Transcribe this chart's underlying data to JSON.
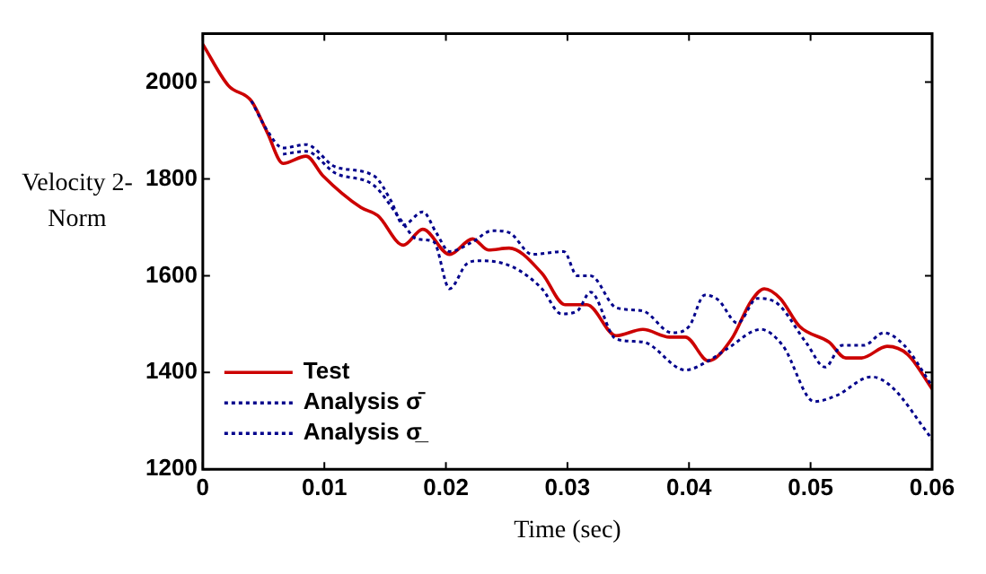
{
  "chart_data": {
    "type": "line",
    "xlabel": "Time (sec)",
    "ylabel": "Velocity 2-Norm",
    "xlim": [
      0,
      0.06
    ],
    "xticks": [
      0,
      0.01,
      0.02,
      0.03,
      0.04,
      0.05,
      0.06
    ],
    "ylim": [
      1200,
      2100
    ],
    "yticks": [
      1200,
      1400,
      1600,
      1800,
      2000
    ],
    "grid": false,
    "legend": "bottom left",
    "marker": "none",
    "series": [
      {
        "name": "Test",
        "color": "#cc0000",
        "line_style": "solid",
        "x": [
          0,
          0.0021,
          0.004,
          0.0053,
          0.0066,
          0.0085,
          0.0099,
          0.013,
          0.0144,
          0.0165,
          0.0181,
          0.0203,
          0.0222,
          0.0235,
          0.0252,
          0.0279,
          0.0298,
          0.0316,
          0.034,
          0.0362,
          0.0384,
          0.0397,
          0.0416,
          0.0435,
          0.0451,
          0.0462,
          0.0475,
          0.0491,
          0.0515,
          0.0529,
          0.0542,
          0.0563,
          0.058,
          0.06
        ],
        "values": [
          2078,
          1993,
          1961,
          1896,
          1832,
          1847,
          1806,
          1741,
          1724,
          1663,
          1696,
          1644,
          1676,
          1653,
          1657,
          1605,
          1540,
          1540,
          1476,
          1489,
          1473,
          1473,
          1424,
          1469,
          1547,
          1573,
          1553,
          1495,
          1463,
          1430,
          1430,
          1454,
          1437,
          1366
        ]
      },
      {
        "name": "Analysis σ̄",
        "color": "#00008b",
        "line_style": "dotted",
        "x": [
          0.004,
          0.0053,
          0.0066,
          0.0085,
          0.0109,
          0.0141,
          0.0155,
          0.0165,
          0.0181,
          0.0192,
          0.0203,
          0.0222,
          0.0238,
          0.0252,
          0.0271,
          0.0297,
          0.0308,
          0.0319,
          0.034,
          0.0362,
          0.0386,
          0.04,
          0.0413,
          0.0424,
          0.044,
          0.0456,
          0.047,
          0.0496,
          0.0512,
          0.0526,
          0.0544,
          0.056,
          0.0577,
          0.06
        ],
        "values": [
          1961,
          1900,
          1864,
          1871,
          1825,
          1806,
          1754,
          1705,
          1732,
          1689,
          1650,
          1670,
          1693,
          1689,
          1644,
          1650,
          1600,
          1600,
          1534,
          1527,
          1482,
          1495,
          1560,
          1550,
          1502,
          1553,
          1547,
          1463,
          1411,
          1456,
          1456,
          1482,
          1456,
          1372
        ]
      },
      {
        "name": "Analysis σ̲",
        "color": "#00008b",
        "line_style": "dotted",
        "x": [
          0.0066,
          0.0085,
          0.0109,
          0.0141,
          0.0163,
          0.0176,
          0.019,
          0.0203,
          0.0217,
          0.0228,
          0.0255,
          0.0279,
          0.0295,
          0.0308,
          0.0319,
          0.034,
          0.0362,
          0.0397,
          0.0416,
          0.0432,
          0.0459,
          0.0477,
          0.0503,
          0.0521,
          0.055,
          0.0566,
          0.06
        ],
        "values": [
          1851,
          1857,
          1812,
          1786,
          1715,
          1676,
          1670,
          1573,
          1624,
          1631,
          1618,
          1573,
          1521,
          1527,
          1566,
          1469,
          1463,
          1405,
          1424,
          1450,
          1489,
          1456,
          1340,
          1352,
          1391,
          1372,
          1262
        ]
      }
    ]
  }
}
